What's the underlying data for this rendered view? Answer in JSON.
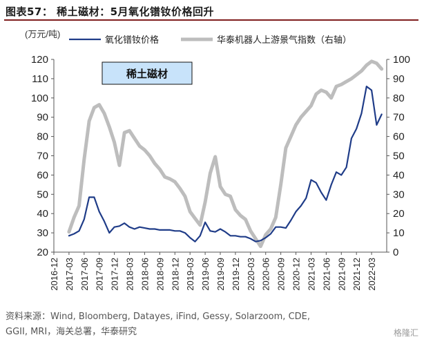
{
  "figure": {
    "title": "图表57： 稀土磁材：5月氧化镨钕价格回升",
    "source_line1": "资料来源：Wind, Bloomberg, Datayes, iFind, Gessy, Solarzoom, CDE,",
    "source_line2": "GGII, MRI，海关总署，华泰研究",
    "watermark": "格隆汇"
  },
  "chart_data": {
    "type": "line",
    "title": "",
    "annotation": "稀土磁材",
    "ylabel": "(万元/吨)",
    "y2label": "",
    "ylim": [
      20,
      120
    ],
    "y2lim": [
      0,
      100
    ],
    "yticks": [
      20,
      30,
      40,
      50,
      60,
      70,
      80,
      90,
      100,
      110,
      120
    ],
    "y2ticks": [
      0,
      10,
      20,
      30,
      40,
      50,
      60,
      70,
      80,
      90,
      100
    ],
    "grid": false,
    "legend_position": "top",
    "xlim": [
      "2016-12",
      "2022-06"
    ],
    "x_tick_labels": [
      "2016-12",
      "2017-03",
      "2017-06",
      "2017-09",
      "2017-12",
      "2018-03",
      "2018-06",
      "2018-09",
      "2018-12",
      "2019-03",
      "2019-06",
      "2019-09",
      "2019-12",
      "2020-03",
      "2020-06",
      "2020-09",
      "2020-12",
      "2021-03",
      "2021-06",
      "2021-09",
      "2021-12",
      "2022-03"
    ],
    "series": [
      {
        "name": "氧化镨钕价格",
        "axis": "left",
        "color": "#1f3c88",
        "points": [
          [
            "2017-03",
            28.5
          ],
          [
            "2017-04",
            29.5
          ],
          [
            "2017-05",
            31
          ],
          [
            "2017-06",
            37
          ],
          [
            "2017-07",
            48.5
          ],
          [
            "2017-08",
            48.5
          ],
          [
            "2017-09",
            41
          ],
          [
            "2017-10",
            36
          ],
          [
            "2017-11",
            30
          ],
          [
            "2017-12",
            33
          ],
          [
            "2018-01",
            33.5
          ],
          [
            "2018-02",
            35
          ],
          [
            "2018-03",
            33
          ],
          [
            "2018-04",
            32
          ],
          [
            "2018-05",
            33
          ],
          [
            "2018-06",
            32.5
          ],
          [
            "2018-07",
            32
          ],
          [
            "2018-08",
            32
          ],
          [
            "2018-09",
            31.5
          ],
          [
            "2018-10",
            31.5
          ],
          [
            "2018-11",
            31.5
          ],
          [
            "2018-12",
            31
          ],
          [
            "2019-01",
            31
          ],
          [
            "2019-02",
            30
          ],
          [
            "2019-03",
            27.5
          ],
          [
            "2019-04",
            25.5
          ],
          [
            "2019-05",
            28.5
          ],
          [
            "2019-06",
            35.5
          ],
          [
            "2019-07",
            31
          ],
          [
            "2019-08",
            30.5
          ],
          [
            "2019-09",
            32
          ],
          [
            "2019-10",
            30.5
          ],
          [
            "2019-11",
            28.5
          ],
          [
            "2019-12",
            28.5
          ],
          [
            "2020-01",
            28
          ],
          [
            "2020-02",
            28
          ],
          [
            "2020-03",
            27
          ],
          [
            "2020-04",
            25.5
          ],
          [
            "2020-05",
            26
          ],
          [
            "2020-06",
            27.5
          ],
          [
            "2020-07",
            29.5
          ],
          [
            "2020-08",
            33
          ],
          [
            "2020-09",
            33
          ],
          [
            "2020-10",
            32.5
          ],
          [
            "2020-11",
            36.5
          ],
          [
            "2020-12",
            41
          ],
          [
            "2021-01",
            44
          ],
          [
            "2021-02",
            48
          ],
          [
            "2021-03",
            57.5
          ],
          [
            "2021-04",
            56
          ],
          [
            "2021-05",
            51
          ],
          [
            "2021-06",
            47
          ],
          [
            "2021-07",
            55
          ],
          [
            "2021-08",
            61.5
          ],
          [
            "2021-09",
            60
          ],
          [
            "2021-10",
            64
          ],
          [
            "2021-11",
            79
          ],
          [
            "2021-12",
            84
          ],
          [
            "2022-01",
            92
          ],
          [
            "2022-02",
            106
          ],
          [
            "2022-03",
            104
          ],
          [
            "2022-04",
            86
          ],
          [
            "2022-05",
            91.5
          ]
        ]
      },
      {
        "name": "华泰机器人上游景气指数（右轴）",
        "axis": "right",
        "color": "#bdbdbd",
        "points": [
          [
            "2017-03",
            10.5
          ],
          [
            "2017-04",
            18
          ],
          [
            "2017-05",
            24
          ],
          [
            "2017-06",
            48
          ],
          [
            "2017-07",
            68
          ],
          [
            "2017-08",
            75
          ],
          [
            "2017-09",
            76.5
          ],
          [
            "2017-10",
            72
          ],
          [
            "2017-11",
            65
          ],
          [
            "2017-12",
            57
          ],
          [
            "2018-01",
            45
          ],
          [
            "2018-02",
            62
          ],
          [
            "2018-03",
            63
          ],
          [
            "2018-04",
            59
          ],
          [
            "2018-05",
            55
          ],
          [
            "2018-06",
            53
          ],
          [
            "2018-07",
            50
          ],
          [
            "2018-08",
            46
          ],
          [
            "2018-09",
            43
          ],
          [
            "2018-10",
            39
          ],
          [
            "2018-11",
            38
          ],
          [
            "2018-12",
            36.5
          ],
          [
            "2019-01",
            33
          ],
          [
            "2019-02",
            29
          ],
          [
            "2019-03",
            21
          ],
          [
            "2019-04",
            17.5
          ],
          [
            "2019-05",
            14
          ],
          [
            "2019-06",
            26
          ],
          [
            "2019-07",
            41
          ],
          [
            "2019-08",
            49.5
          ],
          [
            "2019-09",
            34
          ],
          [
            "2019-10",
            30
          ],
          [
            "2019-11",
            29
          ],
          [
            "2019-12",
            22
          ],
          [
            "2020-01",
            19
          ],
          [
            "2020-02",
            17
          ],
          [
            "2020-03",
            11
          ],
          [
            "2020-04",
            7
          ],
          [
            "2020-05",
            3
          ],
          [
            "2020-06",
            9
          ],
          [
            "2020-07",
            12
          ],
          [
            "2020-08",
            18
          ],
          [
            "2020-09",
            35
          ],
          [
            "2020-10",
            54
          ],
          [
            "2020-11",
            60
          ],
          [
            "2020-12",
            66
          ],
          [
            "2021-01",
            70
          ],
          [
            "2021-02",
            73
          ],
          [
            "2021-03",
            76
          ],
          [
            "2021-04",
            82
          ],
          [
            "2021-05",
            84
          ],
          [
            "2021-06",
            83
          ],
          [
            "2021-07",
            80
          ],
          [
            "2021-08",
            86
          ],
          [
            "2021-09",
            87
          ],
          [
            "2021-10",
            88.5
          ],
          [
            "2021-11",
            90
          ],
          [
            "2021-12",
            92
          ],
          [
            "2022-01",
            94
          ],
          [
            "2022-02",
            97
          ],
          [
            "2022-03",
            99
          ],
          [
            "2022-04",
            98
          ],
          [
            "2022-05",
            95
          ]
        ]
      }
    ]
  }
}
